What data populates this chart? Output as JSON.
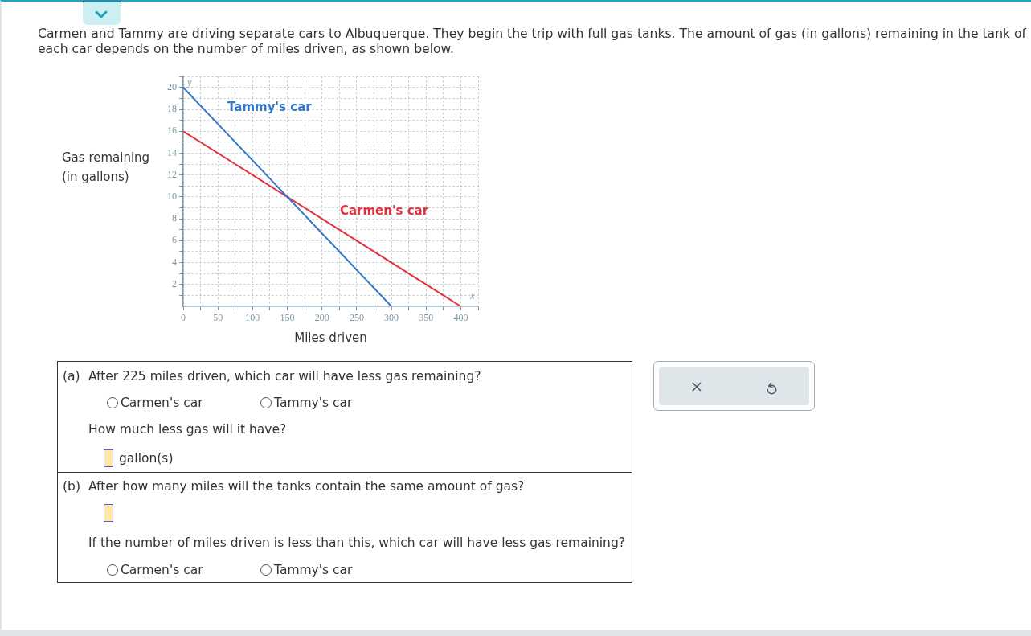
{
  "chart_data": {
    "type": "line",
    "title": "Carmen and Tammy are driving separate cars to Albuquerque. They begin the trip with full gas tanks. The amount of gas (in gallons) remaining in the tank of each car depends on the number of miles driven, as shown below.",
    "xlabel": "Miles driven",
    "ylabel": "Gas remaining (in gallons)",
    "series": [
      {
        "name": "Tammy's car",
        "color": "#3277c9",
        "x": [
          0,
          300
        ],
        "values": [
          20,
          0
        ]
      },
      {
        "name": "Carmen's car",
        "color": "#e5303c",
        "x": [
          0,
          400
        ],
        "values": [
          16,
          0
        ]
      }
    ],
    "xlim": [
      0,
      425
    ],
    "ylim": [
      0,
      21
    ],
    "xticks": [
      {
        "value": 0,
        "label": "0"
      },
      {
        "value": 25,
        "label": null
      },
      50,
      {
        "value": 75,
        "label": null
      },
      100,
      {
        "value": 125,
        "label": null
      },
      150,
      {
        "value": 175,
        "label": null
      },
      200,
      {
        "value": 225,
        "label": null
      },
      250,
      {
        "value": 275,
        "label": null
      },
      300,
      {
        "value": 325,
        "label": null
      },
      350,
      {
        "value": 375,
        "label": null
      },
      400,
      {
        "value": 425,
        "label": null
      }
    ],
    "yticks": [
      {
        "value": 1,
        "label": null
      },
      2,
      {
        "value": 3,
        "label": null
      },
      4,
      {
        "value": 5,
        "label": null
      },
      6,
      {
        "value": 7,
        "label": null
      },
      8,
      {
        "value": 9,
        "label": null
      },
      10,
      {
        "value": 11,
        "label": null
      },
      12,
      {
        "value": 13,
        "label": null
      },
      14,
      {
        "value": 15,
        "label": null
      },
      16,
      {
        "value": 17,
        "label": null
      },
      18,
      {
        "value": 19,
        "label": null
      },
      20,
      {
        "value": 21,
        "label": null
      }
    ],
    "grid": true,
    "marker": "none",
    "line_style": "solid",
    "annotations": [
      "y",
      "x",
      "(a)",
      "After 225 miles driven, which car will have less gas remaining?",
      "Carmen's car",
      "Tammy's car",
      "How much less gas will it have?",
      "gallon(s)",
      "(b)",
      "After how many miles will the tanks contain the same amount of gas?",
      "If the number of miles driven is less than this, which car will have less gas remaining?",
      "Carmen's car",
      "Tammy's car"
    ]
  }
}
